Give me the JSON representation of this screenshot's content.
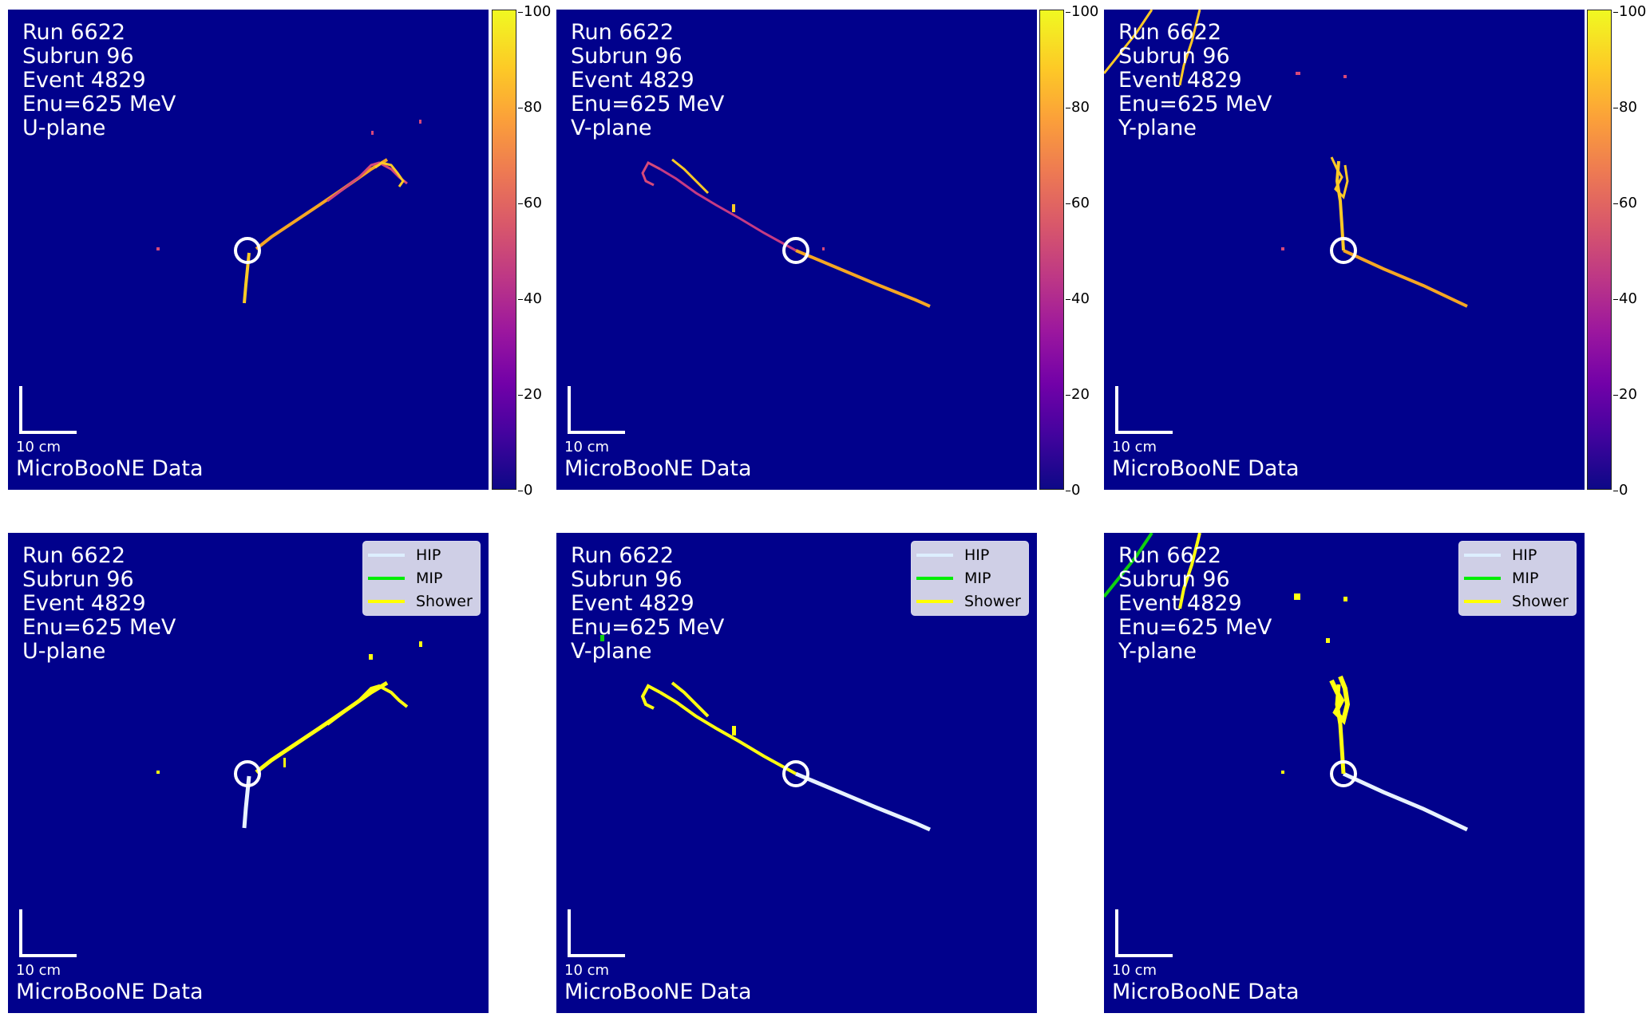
{
  "panels": [
    {
      "id": "u-top",
      "row": "top",
      "lines": [
        "Run 6622",
        "Subrun 96",
        "Event 4829",
        "Enu=625 MeV",
        "U-plane"
      ],
      "scale_label": "10 cm",
      "footer": "MicroBooNE Data"
    },
    {
      "id": "v-top",
      "row": "top",
      "lines": [
        "Run 6622",
        "Subrun 96",
        "Event 4829",
        "Enu=625 MeV",
        "V-plane"
      ],
      "scale_label": "10 cm",
      "footer": "MicroBooNE Data"
    },
    {
      "id": "y-top",
      "row": "top",
      "lines": [
        "Run 6622",
        "Subrun 96",
        "Event 4829",
        "Enu=625 MeV",
        "Y-plane"
      ],
      "scale_label": "10 cm",
      "footer": "MicroBooNE Data"
    },
    {
      "id": "u-bot",
      "row": "bottom",
      "lines": [
        "Run 6622",
        "Subrun 96",
        "Event 4829",
        "Enu=625 MeV",
        "U-plane"
      ],
      "scale_label": "10 cm",
      "footer": "MicroBooNE Data"
    },
    {
      "id": "v-bot",
      "row": "bottom",
      "lines": [
        "Run 6622",
        "Subrun 96",
        "Event 4829",
        "Enu=625 MeV",
        "V-plane"
      ],
      "scale_label": "10 cm",
      "footer": "MicroBooNE Data"
    },
    {
      "id": "y-bot",
      "row": "bottom",
      "lines": [
        "Run 6622",
        "Subrun 96",
        "Event 4829",
        "Enu=625 MeV",
        "Y-plane"
      ],
      "scale_label": "10 cm",
      "footer": "MicroBooNE Data"
    }
  ],
  "colorbar": {
    "ticks": [
      "100",
      "80",
      "60",
      "40",
      "20",
      "0"
    ],
    "range": [
      0,
      100
    ],
    "colormap": "plasma"
  },
  "legend": {
    "items": [
      {
        "label": "HIP",
        "color": "#ddeeff"
      },
      {
        "label": "MIP",
        "color": "#00ee00"
      },
      {
        "label": "Shower",
        "color": "#ffff00"
      }
    ]
  },
  "colors": {
    "background": "#01018c",
    "track": "#f5a623",
    "track_low": "#b52b8f",
    "hip": "#e8f2ff",
    "mip": "#10d010",
    "shower": "#ffff10",
    "vertex": "#ffffff"
  }
}
